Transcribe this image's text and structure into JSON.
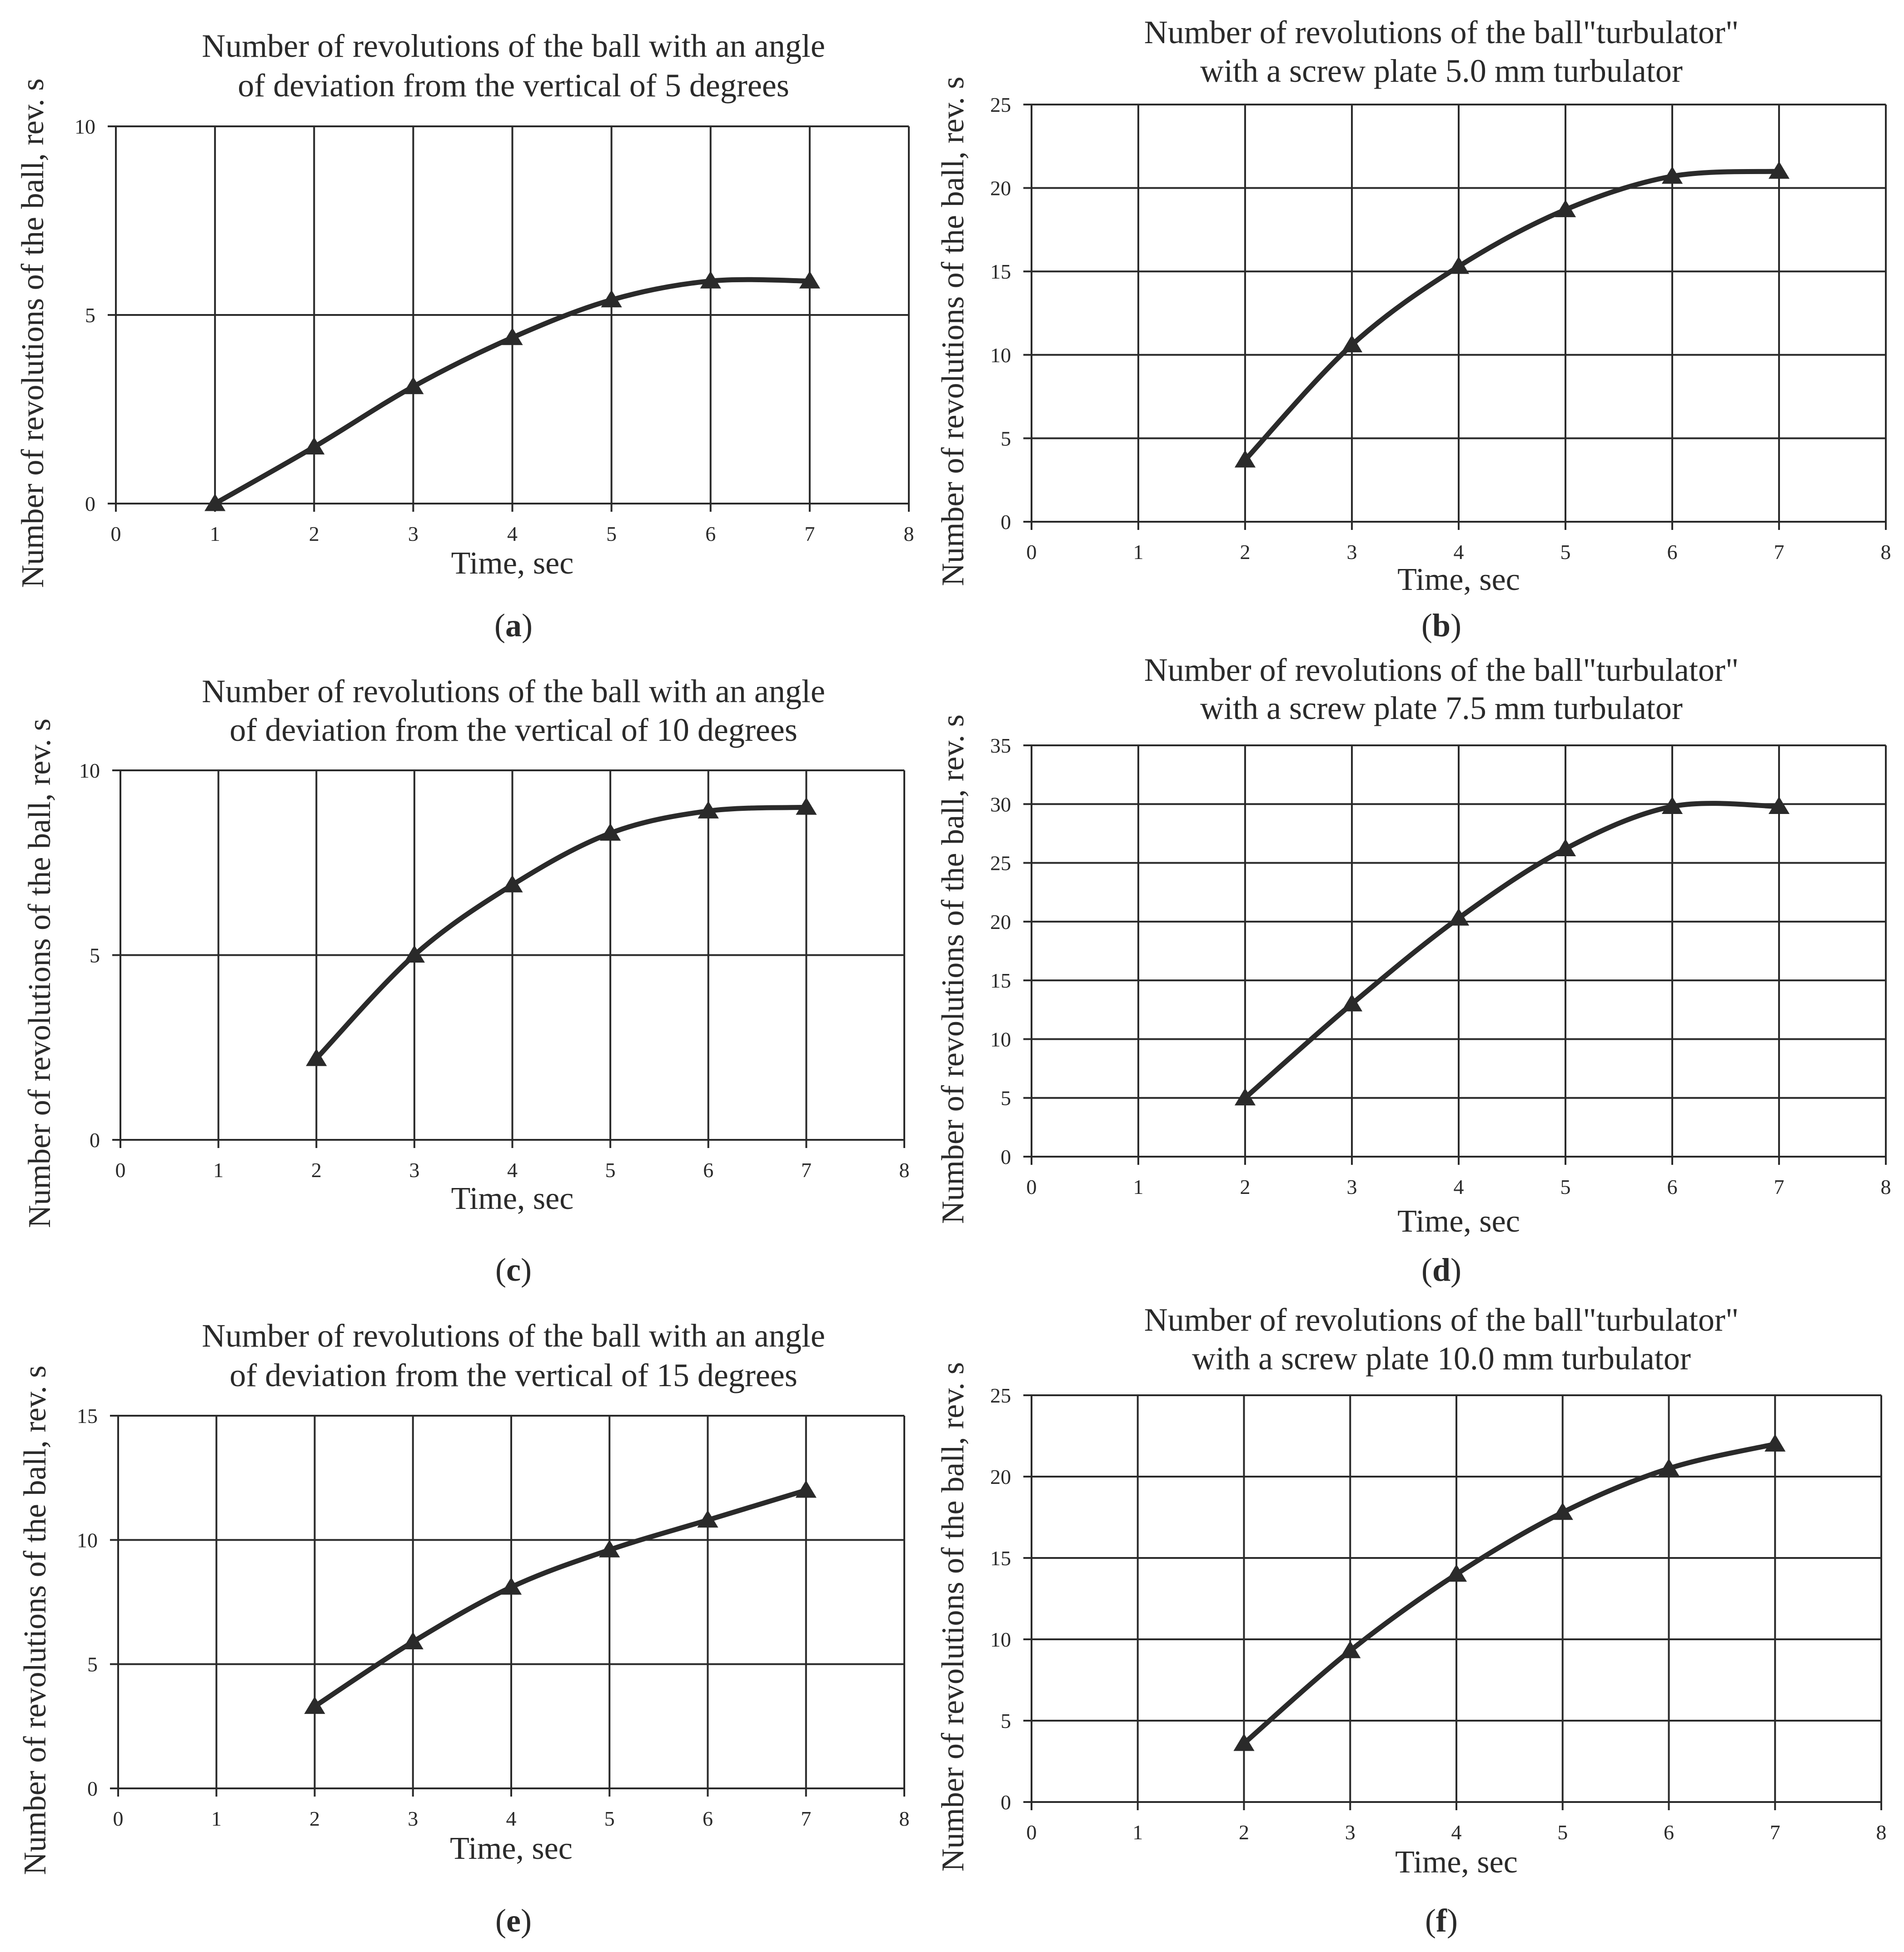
{
  "chart_data": [
    {
      "type": "line",
      "panel": "a",
      "title": [
        "Number of revolutions of the ball with an angle",
        "of deviation from the vertical of 5 degrees"
      ],
      "xlabel": "Time, sec",
      "ylabel": "Number of revolutions of the ball, rev. s",
      "xlim": [
        0,
        8
      ],
      "ylim": [
        0,
        10
      ],
      "xticks": [
        "0",
        "1",
        "2",
        "3",
        "4",
        "5",
        "6",
        "7",
        "8"
      ],
      "yticks": [
        "0",
        "5",
        "10"
      ],
      "grid": true,
      "x": [
        1,
        2,
        3,
        4,
        5,
        6,
        7
      ],
      "values": [
        0,
        1.5,
        3.1,
        4.4,
        5.4,
        5.9,
        5.9
      ]
    },
    {
      "type": "line",
      "panel": "b",
      "title": [
        "Number of revolutions of the ball\"turbulator\"",
        "with a screw plate 5.0 mm turbulator"
      ],
      "xlabel": "Time, sec",
      "ylabel": "Number of revolutions of the ball, rev. s",
      "xlim": [
        0,
        8
      ],
      "ylim": [
        0,
        25
      ],
      "xticks": [
        "0",
        "1",
        "2",
        "3",
        "4",
        "5",
        "6",
        "7",
        "8"
      ],
      "yticks": [
        "0",
        "5",
        "10",
        "15",
        "20",
        "25"
      ],
      "grid": true,
      "x": [
        2,
        3,
        4,
        5,
        6,
        7
      ],
      "values": [
        3.7,
        10.6,
        15.3,
        18.7,
        20.7,
        21.0
      ]
    },
    {
      "type": "line",
      "panel": "c",
      "title": [
        "Number of revolutions of the ball with an angle",
        "of deviation from the vertical of 10 degrees"
      ],
      "xlabel": "Time, sec",
      "ylabel": "Number of revolutions of the ball, rev. s",
      "xlim": [
        0,
        8
      ],
      "ylim": [
        0,
        10
      ],
      "xticks": [
        "0",
        "1",
        "2",
        "3",
        "4",
        "5",
        "6",
        "7",
        "8"
      ],
      "yticks": [
        "0",
        "5",
        "10"
      ],
      "grid": true,
      "x": [
        2,
        3,
        4,
        5,
        6,
        7
      ],
      "values": [
        2.2,
        5.0,
        6.9,
        8.3,
        8.9,
        9.0
      ]
    },
    {
      "type": "line",
      "panel": "d",
      "title": [
        "Number of revolutions of the ball\"turbulator\"",
        "with a screw plate 7.5 mm turbulator"
      ],
      "xlabel": "Time, sec",
      "ylabel": "Number of revolutions of the ball, rev. s",
      "xlim": [
        0,
        8
      ],
      "ylim": [
        0,
        35
      ],
      "xticks": [
        "0",
        "1",
        "2",
        "3",
        "4",
        "5",
        "6",
        "7",
        "8"
      ],
      "yticks": [
        "0",
        "5",
        "10",
        "15",
        "20",
        "25",
        "30",
        "35"
      ],
      "grid": true,
      "x": [
        2,
        3,
        4,
        5,
        6,
        7
      ],
      "values": [
        5.0,
        13.0,
        20.3,
        26.2,
        29.8,
        29.8
      ]
    },
    {
      "type": "line",
      "panel": "e",
      "title": [
        "Number of revolutions of the ball with an angle",
        "of deviation from the vertical of 15 degrees"
      ],
      "xlabel": "Time, sec",
      "ylabel": "Number of revolutions of the ball, rev. s",
      "xlim": [
        0,
        8
      ],
      "ylim": [
        0,
        15
      ],
      "xticks": [
        "0",
        "1",
        "2",
        "3",
        "4",
        "5",
        "6",
        "7",
        "8"
      ],
      "yticks": [
        "0",
        "5",
        "10",
        "15"
      ],
      "grid": true,
      "x": [
        2,
        3,
        4,
        5,
        6,
        7
      ],
      "values": [
        3.3,
        5.9,
        8.1,
        9.6,
        10.8,
        12.0
      ]
    },
    {
      "type": "line",
      "panel": "f",
      "title": [
        "Number of revolutions of the ball\"turbulator\"",
        "with a screw plate 10.0 mm turbulator"
      ],
      "xlabel": "Time, sec",
      "ylabel": "Number of revolutions of the ball, rev. s",
      "xlim": [
        0,
        8
      ],
      "ylim": [
        0,
        25
      ],
      "xticks": [
        "0",
        "1",
        "2",
        "3",
        "4",
        "5",
        "6",
        "7",
        "8"
      ],
      "yticks": [
        "0",
        "5",
        "10",
        "15",
        "20",
        "25"
      ],
      "grid": true,
      "x": [
        2,
        3,
        4,
        5,
        6,
        7
      ],
      "values": [
        3.6,
        9.3,
        14.0,
        17.8,
        20.5,
        22.0
      ]
    }
  ],
  "captions": [
    "(a)",
    "(b)",
    "(c)",
    "(d)",
    "(e)",
    "(f)"
  ],
  "style": {
    "ink_color": "#2a2a2a",
    "background_color": "#ffffff"
  }
}
